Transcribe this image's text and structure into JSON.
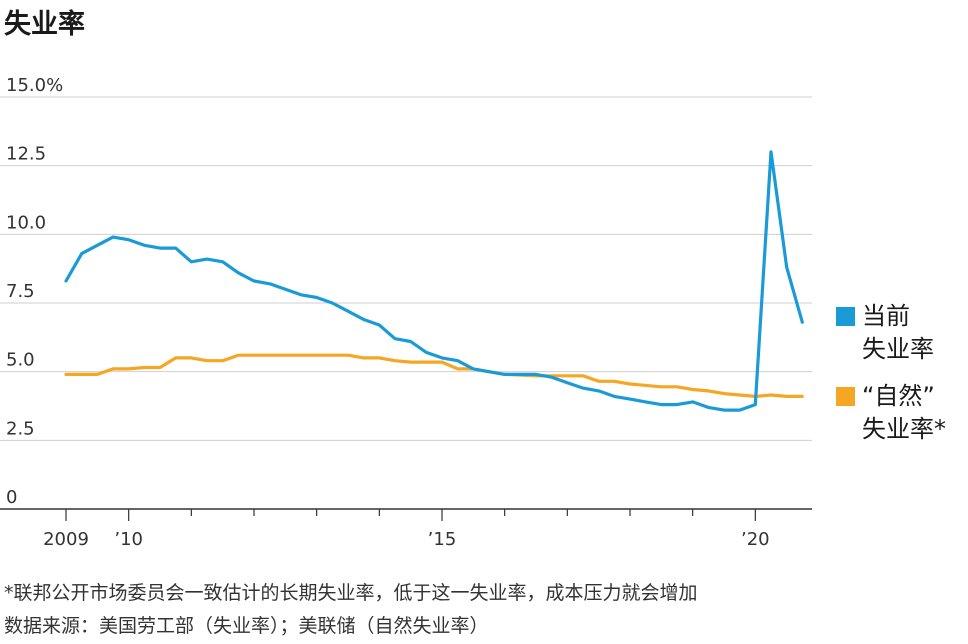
{
  "chart_data": {
    "type": "line",
    "title": "失业率",
    "xlabel": "",
    "ylabel": "",
    "ylim": [
      0,
      15
    ],
    "xlim": [
      2009.0,
      2021.0
    ],
    "y_ticks": [
      0,
      2.5,
      5.0,
      7.5,
      10.0,
      12.5,
      15.0
    ],
    "y_tick_labels": [
      "0",
      "2.5",
      "5.0",
      "7.5",
      "10.0",
      "12.5",
      "15.0%"
    ],
    "x_ticks": [
      2009.0,
      2010.0,
      2015.0,
      2020.0
    ],
    "x_tick_labels": [
      "2009",
      "’10",
      "’15",
      "’20"
    ],
    "x_minor_ticks": [
      2011.0,
      2012.0,
      2013.0,
      2014.0,
      2016.0,
      2017.0,
      2018.0,
      2019.0,
      2021.0
    ],
    "grid": true,
    "legend_position": "right",
    "series": [
      {
        "name": "当前\n失业率",
        "color": "#1a9bd7",
        "x": [
          2009.0,
          2009.25,
          2009.5,
          2009.75,
          2010.0,
          2010.25,
          2010.5,
          2010.75,
          2011.0,
          2011.25,
          2011.5,
          2011.75,
          2012.0,
          2012.25,
          2012.5,
          2012.75,
          2013.0,
          2013.25,
          2013.5,
          2013.75,
          2014.0,
          2014.25,
          2014.5,
          2014.75,
          2015.0,
          2015.25,
          2015.5,
          2015.75,
          2016.0,
          2016.25,
          2016.5,
          2016.75,
          2017.0,
          2017.25,
          2017.5,
          2017.75,
          2018.0,
          2018.25,
          2018.5,
          2018.75,
          2019.0,
          2019.25,
          2019.5,
          2019.75,
          2020.0,
          2020.25,
          2020.5,
          2020.75
        ],
        "y": [
          8.3,
          9.3,
          9.6,
          9.9,
          9.8,
          9.6,
          9.5,
          9.5,
          9.0,
          9.1,
          9.0,
          8.6,
          8.3,
          8.2,
          8.0,
          7.8,
          7.7,
          7.5,
          7.2,
          6.9,
          6.7,
          6.2,
          6.1,
          5.7,
          5.5,
          5.4,
          5.1,
          5.0,
          4.9,
          4.9,
          4.9,
          4.8,
          4.6,
          4.4,
          4.3,
          4.1,
          4.0,
          3.9,
          3.8,
          3.8,
          3.9,
          3.7,
          3.6,
          3.6,
          3.8,
          13.0,
          8.8,
          6.8
        ]
      },
      {
        "name": "“自然”\n失业率*",
        "color": "#f5a623",
        "x": [
          2009.0,
          2009.5,
          2009.75,
          2010.0,
          2010.25,
          2010.5,
          2010.75,
          2011.0,
          2011.25,
          2011.5,
          2011.75,
          2012.0,
          2012.5,
          2013.0,
          2013.5,
          2013.75,
          2014.0,
          2014.25,
          2014.5,
          2015.0,
          2015.25,
          2015.5,
          2015.75,
          2016.0,
          2016.5,
          2016.75,
          2017.0,
          2017.25,
          2017.5,
          2017.75,
          2018.0,
          2018.5,
          2018.75,
          2019.0,
          2019.25,
          2019.5,
          2019.75,
          2020.0,
          2020.25,
          2020.5,
          2020.75
        ],
        "y": [
          4.9,
          4.9,
          5.1,
          5.1,
          5.15,
          5.15,
          5.5,
          5.5,
          5.4,
          5.4,
          5.6,
          5.6,
          5.6,
          5.6,
          5.6,
          5.5,
          5.5,
          5.4,
          5.35,
          5.35,
          5.1,
          5.1,
          5.0,
          4.9,
          4.85,
          4.85,
          4.85,
          4.85,
          4.65,
          4.65,
          4.55,
          4.45,
          4.45,
          4.35,
          4.3,
          4.2,
          4.15,
          4.1,
          4.15,
          4.1,
          4.1
        ]
      }
    ]
  },
  "footnotes": [
    "*联邦公开市场委员会一致估计的长期失业率，低于这一失业率，成本压力就会增加",
    "数据来源：美国劳工部（失业率）；美联储（自然失业率）"
  ]
}
